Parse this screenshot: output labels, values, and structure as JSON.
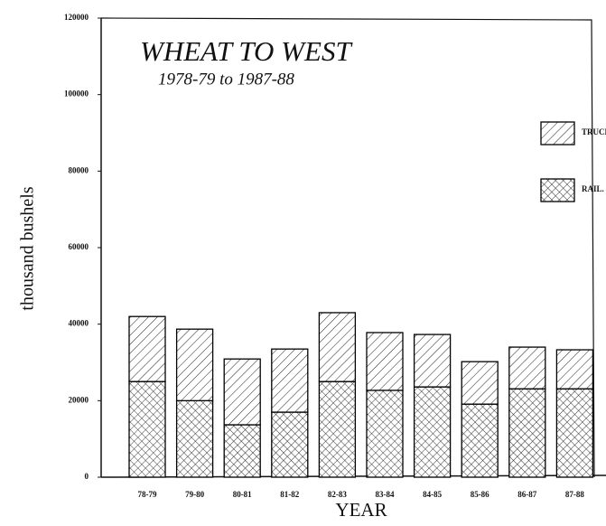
{
  "chart_data": {
    "type": "stacked-bar",
    "title": "WHEAT TO WEST",
    "subtitle": "1978-79 to 1987-88",
    "x_label": "YEAR",
    "y_label": "thousand bushels",
    "categories": [
      "78-79",
      "79-80",
      "80-81",
      "81-82",
      "82-83",
      "83-84",
      "84-85",
      "85-86",
      "86-87",
      "87-88"
    ],
    "series": [
      {
        "name": "RAIL.",
        "color": "#000000",
        "values": [
          25000,
          20000,
          13700,
          17000,
          25000,
          22700,
          23600,
          19100,
          23100,
          23100
        ]
      },
      {
        "name": "TRUCK",
        "color": "#000000",
        "values": [
          17000,
          18700,
          17200,
          16500,
          18000,
          15100,
          13700,
          11100,
          10900,
          10200
        ]
      }
    ],
    "ylim": [
      0,
      120000
    ],
    "yticks": [
      0,
      20000,
      40000,
      60000,
      80000,
      100000,
      120000
    ],
    "legend": "top-right"
  }
}
